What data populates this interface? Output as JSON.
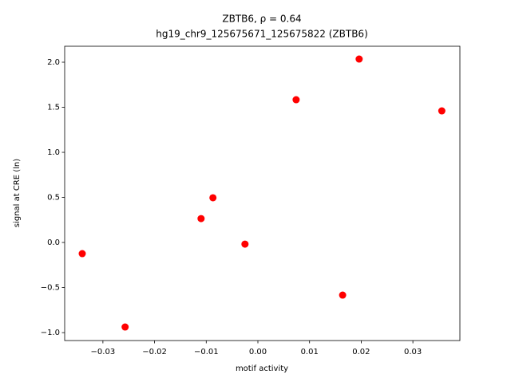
{
  "chart_data": {
    "type": "scatter",
    "title": "ZBTB6, ρ = 0.64",
    "subtitle": "hg19_chr9_125675671_125675822 (ZBTB6)",
    "x_label": "motif activity",
    "y_label": "signal at CRE (ln)",
    "color": "#ff0000",
    "x": [
      -0.034,
      -0.0257,
      -0.011,
      -0.0087,
      -0.0025,
      0.0074,
      0.0164,
      0.0196,
      0.0356
    ],
    "values": [
      -0.124,
      -0.938,
      0.265,
      0.496,
      -0.018,
      1.584,
      -0.584,
      2.035,
      1.46
    ],
    "xlim": [
      -0.0374,
      0.0391
    ],
    "ylim": [
      -1.088,
      2.177
    ],
    "xticks": [
      {
        "value": -0.03,
        "label": "−0.03"
      },
      {
        "value": -0.02,
        "label": "−0.02"
      },
      {
        "value": -0.01,
        "label": "−0.01"
      },
      {
        "value": 0,
        "label": "0.00"
      },
      0.01,
      0.02,
      0.03
    ],
    "yticks": [
      {
        "value": -1,
        "label": "−1.0"
      },
      {
        "value": -0.5,
        "label": "−0.5"
      },
      {
        "value": 0,
        "label": "0.0"
      },
      0.5,
      {
        "value": 1,
        "label": "1.0"
      },
      1.5,
      {
        "value": 2,
        "label": "2.0"
      }
    ]
  }
}
